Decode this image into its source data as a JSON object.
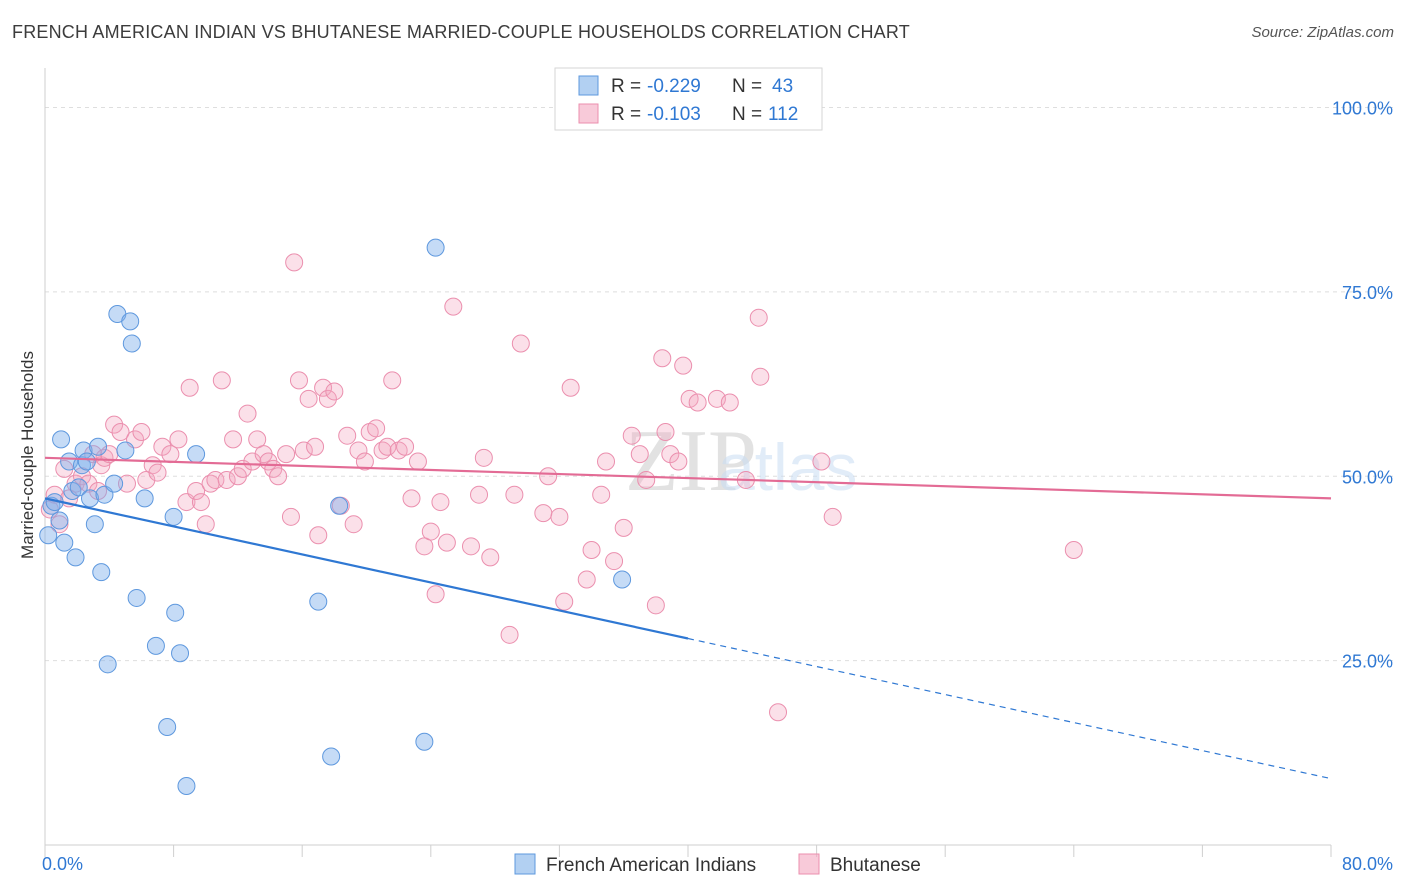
{
  "title": "FRENCH AMERICAN INDIAN VS BHUTANESE MARRIED-COUPLE HOUSEHOLDS CORRELATION CHART",
  "source": "Source: ZipAtlas.com",
  "watermark": {
    "zip": "ZIP",
    "atlas": "atlas"
  },
  "chart_data": {
    "type": "scatter",
    "title": "FRENCH AMERICAN INDIAN VS BHUTANESE MARRIED-COUPLE HOUSEHOLDS CORRELATION CHART",
    "xlabel": "",
    "ylabel": "Married-couple Households",
    "xlim": [
      0,
      80
    ],
    "ylim": [
      0,
      104
    ],
    "x_tick_labels": [
      "0.0%",
      "80.0%"
    ],
    "y_ticks": [
      25,
      50,
      75,
      100
    ],
    "y_tick_labels": [
      "25.0%",
      "50.0%",
      "75.0%",
      "100.0%"
    ],
    "grid": true,
    "legend_placement": "top-center",
    "legend_r_label": "R =",
    "legend_n_label": "N =",
    "series": [
      {
        "name": "French American Indians",
        "color": "#7fb0ea",
        "line_color": "#2f78d3",
        "R": "-0.229",
        "N": "43",
        "trend": {
          "x0": 0,
          "y0": 47.0,
          "x1": 40,
          "y1": 28.0,
          "dashed_to_x": 80,
          "dashed_to_y": 9.0
        },
        "points": [
          [
            0.2,
            42
          ],
          [
            0.4,
            46
          ],
          [
            0.6,
            46.5
          ],
          [
            0.9,
            44
          ],
          [
            1.0,
            55
          ],
          [
            1.2,
            41
          ],
          [
            1.5,
            52
          ],
          [
            1.7,
            48
          ],
          [
            1.9,
            39
          ],
          [
            2.1,
            48.5
          ],
          [
            2.3,
            51.5
          ],
          [
            2.4,
            53.5
          ],
          [
            2.6,
            52
          ],
          [
            2.8,
            47
          ],
          [
            3.1,
            43.5
          ],
          [
            3.3,
            54
          ],
          [
            3.5,
            37
          ],
          [
            3.7,
            47.5
          ],
          [
            3.9,
            24.5
          ],
          [
            4.3,
            49
          ],
          [
            4.5,
            72
          ],
          [
            5.0,
            53.5
          ],
          [
            5.3,
            71
          ],
          [
            5.4,
            68
          ],
          [
            5.7,
            33.5
          ],
          [
            6.2,
            47
          ],
          [
            6.9,
            27
          ],
          [
            7.6,
            16
          ],
          [
            8.0,
            44.5
          ],
          [
            8.1,
            31.5
          ],
          [
            8.4,
            26
          ],
          [
            8.8,
            8
          ],
          [
            9.4,
            53
          ],
          [
            17.0,
            33
          ],
          [
            17.8,
            12
          ],
          [
            18.3,
            46
          ],
          [
            23.6,
            14
          ],
          [
            24.3,
            81
          ],
          [
            35.9,
            36
          ]
        ]
      },
      {
        "name": "Bhutanese",
        "color": "#f3a7c0",
        "line_color": "#e36b95",
        "R": "-0.103",
        "N": "112",
        "trend": {
          "x0": 0,
          "y0": 52.5,
          "x1": 80,
          "y1": 47.0
        },
        "points": [
          [
            0.3,
            45.5
          ],
          [
            0.6,
            47.5
          ],
          [
            0.9,
            43.5
          ],
          [
            1.2,
            51
          ],
          [
            1.5,
            47
          ],
          [
            1.9,
            49
          ],
          [
            2.3,
            50
          ],
          [
            2.7,
            49
          ],
          [
            3.0,
            53
          ],
          [
            3.3,
            48
          ],
          [
            3.5,
            51.5
          ],
          [
            3.7,
            52.5
          ],
          [
            4.0,
            53
          ],
          [
            4.3,
            57
          ],
          [
            4.7,
            56
          ],
          [
            5.1,
            49
          ],
          [
            5.6,
            55
          ],
          [
            6.0,
            56
          ],
          [
            6.3,
            49.5
          ],
          [
            6.7,
            51.5
          ],
          [
            7.0,
            50.5
          ],
          [
            7.3,
            54
          ],
          [
            7.8,
            53
          ],
          [
            8.3,
            55
          ],
          [
            8.8,
            46.5
          ],
          [
            9.0,
            62
          ],
          [
            9.4,
            48
          ],
          [
            9.7,
            46.5
          ],
          [
            10.0,
            43.5
          ],
          [
            10.3,
            49
          ],
          [
            10.6,
            49.5
          ],
          [
            11.0,
            63
          ],
          [
            11.3,
            49.5
          ],
          [
            11.7,
            55
          ],
          [
            12.0,
            50
          ],
          [
            12.3,
            51
          ],
          [
            12.6,
            58.5
          ],
          [
            12.9,
            52
          ],
          [
            13.2,
            55
          ],
          [
            13.6,
            53
          ],
          [
            13.9,
            52
          ],
          [
            14.2,
            51
          ],
          [
            14.5,
            50
          ],
          [
            15.0,
            53
          ],
          [
            15.3,
            44.5
          ],
          [
            15.5,
            79
          ],
          [
            15.8,
            63
          ],
          [
            16.1,
            53.5
          ],
          [
            16.4,
            60.5
          ],
          [
            16.8,
            54
          ],
          [
            17.0,
            42
          ],
          [
            17.3,
            62
          ],
          [
            17.6,
            60.5
          ],
          [
            18.0,
            61.5
          ],
          [
            18.4,
            46
          ],
          [
            18.8,
            55.5
          ],
          [
            19.2,
            43.5
          ],
          [
            19.5,
            53.5
          ],
          [
            19.9,
            52
          ],
          [
            20.2,
            56
          ],
          [
            20.6,
            56.5
          ],
          [
            21.0,
            53.5
          ],
          [
            21.3,
            54
          ],
          [
            21.6,
            63
          ],
          [
            22.0,
            53.5
          ],
          [
            22.4,
            54
          ],
          [
            22.8,
            47
          ],
          [
            23.2,
            52
          ],
          [
            23.6,
            40.5
          ],
          [
            24.0,
            42.5
          ],
          [
            24.3,
            34
          ],
          [
            24.6,
            46.5
          ],
          [
            25.0,
            41
          ],
          [
            25.4,
            73
          ],
          [
            26.5,
            40.5
          ],
          [
            27.0,
            47.5
          ],
          [
            27.3,
            52.5
          ],
          [
            27.7,
            39
          ],
          [
            28.9,
            28.5
          ],
          [
            29.2,
            47.5
          ],
          [
            29.6,
            68
          ],
          [
            31.0,
            45
          ],
          [
            31.3,
            50
          ],
          [
            32.0,
            44.5
          ],
          [
            32.3,
            33
          ],
          [
            32.7,
            62
          ],
          [
            33.7,
            36
          ],
          [
            34.0,
            40
          ],
          [
            34.6,
            47.5
          ],
          [
            34.9,
            52
          ],
          [
            35.4,
            38.5
          ],
          [
            36.0,
            43
          ],
          [
            36.5,
            55.5
          ],
          [
            37.0,
            53
          ],
          [
            37.4,
            49.5
          ],
          [
            38.0,
            32.5
          ],
          [
            38.4,
            66
          ],
          [
            38.6,
            56
          ],
          [
            38.9,
            53
          ],
          [
            39.4,
            52
          ],
          [
            39.7,
            65
          ],
          [
            40.1,
            60.5
          ],
          [
            40.6,
            60
          ],
          [
            41.8,
            60.5
          ],
          [
            42.6,
            60
          ],
          [
            43.6,
            49.5
          ],
          [
            44.4,
            71.5
          ],
          [
            44.5,
            63.5
          ],
          [
            45.6,
            18
          ],
          [
            48.3,
            52
          ],
          [
            49.0,
            44.5
          ],
          [
            64.0,
            40
          ]
        ]
      }
    ]
  }
}
